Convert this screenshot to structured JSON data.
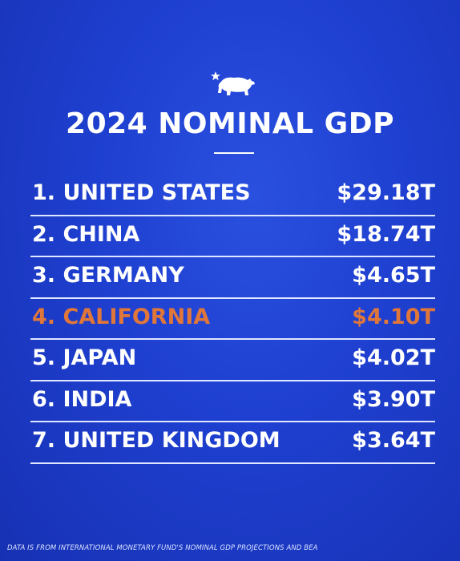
{
  "title": "2024 NOMINAL GDP",
  "icon": "bear-with-star-icon",
  "colors": {
    "background": "#1e3fcf",
    "text": "#ffffff",
    "highlight": "#e0773a"
  },
  "rows": [
    {
      "rank": "1.",
      "name": "UNITED STATES",
      "value": "$29.18T",
      "highlight": false
    },
    {
      "rank": "2.",
      "name": "CHINA",
      "value": "$18.74T",
      "highlight": false
    },
    {
      "rank": "3.",
      "name": "GERMANY",
      "value": "$4.65T",
      "highlight": false
    },
    {
      "rank": "4.",
      "name": "CALIFORNIA",
      "value": "$4.10T",
      "highlight": true
    },
    {
      "rank": "5.",
      "name": "JAPAN",
      "value": "$4.02T",
      "highlight": false
    },
    {
      "rank": "6.",
      "name": "INDIA",
      "value": "$3.90T",
      "highlight": false
    },
    {
      "rank": "7.",
      "name": "UNITED KINGDOM",
      "value": "$3.64T",
      "highlight": false
    }
  ],
  "footnote": "DATA IS FROM INTERNATIONAL MONETARY FUND'S NOMINAL GDP PROJECTIONS AND BEA"
}
